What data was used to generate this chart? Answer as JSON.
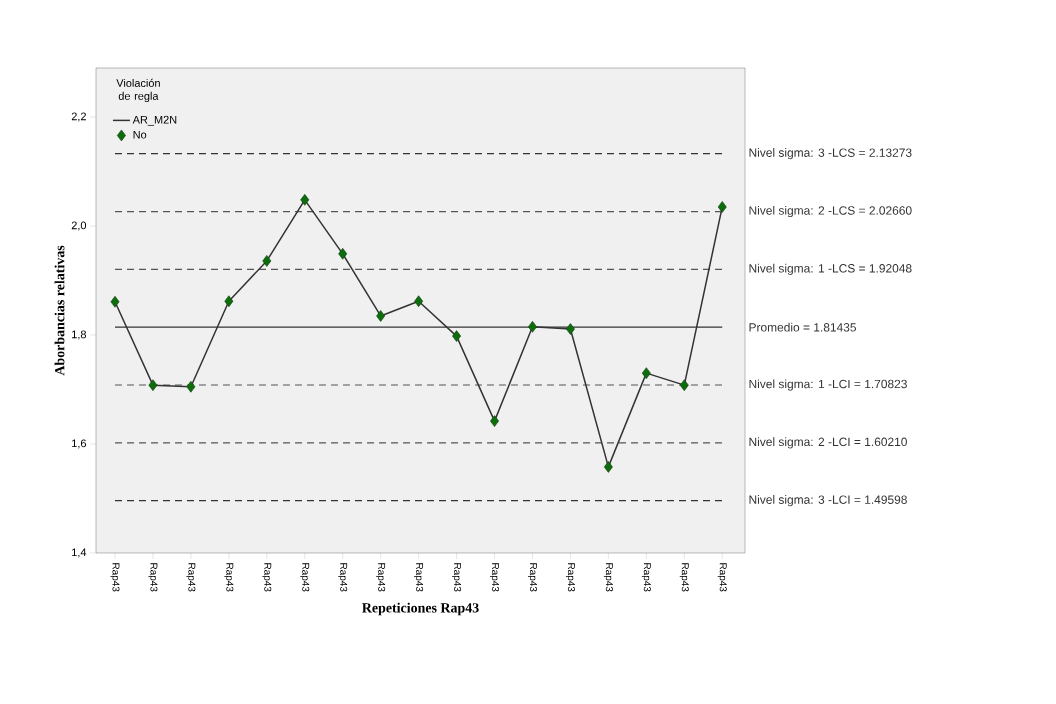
{
  "chart_data": {
    "type": "line",
    "xlabel": "Repeticiones Rap43",
    "ylabel": "Aborbancias relativas",
    "legend_title": "Violación de regla",
    "categories": [
      "Rap43",
      "Rap43",
      "Rap43",
      "Rap43",
      "Rap43",
      "Rap43",
      "Rap43",
      "Rap43",
      "Rap43",
      "Rap43",
      "Rap43",
      "Rap43",
      "Rap43",
      "Rap43",
      "Rap43",
      "Rap43",
      "Rap43"
    ],
    "series": [
      {
        "name": "AR_M2N",
        "color": "#333333",
        "marker": "none",
        "line_style": "solid",
        "values": [
          1.861,
          1.708,
          1.705,
          1.862,
          1.936,
          2.048,
          1.949,
          1.835,
          1.862,
          1.798,
          1.642,
          1.815,
          1.811,
          1.558,
          1.73,
          1.708,
          2.035
        ]
      },
      {
        "name": "No",
        "type": "scatter",
        "color": "#0b6e0b",
        "marker": "diamond",
        "values": [
          1.861,
          1.708,
          1.705,
          1.862,
          1.936,
          2.048,
          1.949,
          1.835,
          1.862,
          1.798,
          1.642,
          1.815,
          1.811,
          1.558,
          1.73,
          1.708,
          2.035
        ]
      }
    ],
    "ylim": [
      1.4,
      2.29
    ],
    "yticks": [
      {
        "value": 1.4,
        "label": "1,4"
      },
      {
        "value": 1.6,
        "label": "1,6"
      },
      {
        "value": 1.8,
        "label": "1,8"
      },
      {
        "value": 2.0,
        "label": "2,0"
      },
      {
        "value": 2.2,
        "label": "2,2"
      }
    ],
    "ref_lines": [
      {
        "axis": "y",
        "value": 2.13273,
        "label": "Nivel sigma: 3 -LCS = 2.13273",
        "color": "#333333",
        "line_style": "dashed"
      },
      {
        "axis": "y",
        "value": 2.0266,
        "label": "Nivel sigma: 2 -LCS = 2.02660",
        "color": "#555555",
        "line_style": "dashed"
      },
      {
        "axis": "y",
        "value": 1.92048,
        "label": "Nivel sigma: 1 -LCS = 1.92048",
        "color": "#555555",
        "line_style": "dashed"
      },
      {
        "axis": "y",
        "value": 1.81435,
        "label": "Promedio = 1.81435",
        "color": "#333333",
        "line_style": "solid"
      },
      {
        "axis": "y",
        "value": 1.70823,
        "label": "Nivel sigma: 1 -LCI = 1.70823",
        "color": "#555555",
        "line_style": "dashed"
      },
      {
        "axis": "y",
        "value": 1.6021,
        "label": "Nivel sigma: 2 -LCI = 1.60210",
        "color": "#555555",
        "line_style": "dashed"
      },
      {
        "axis": "y",
        "value": 1.49598,
        "label": "Nivel sigma: 3 -LCI = 1.49598",
        "color": "#333333",
        "line_style": "dashed"
      }
    ],
    "grid": false,
    "legend": "top left"
  }
}
